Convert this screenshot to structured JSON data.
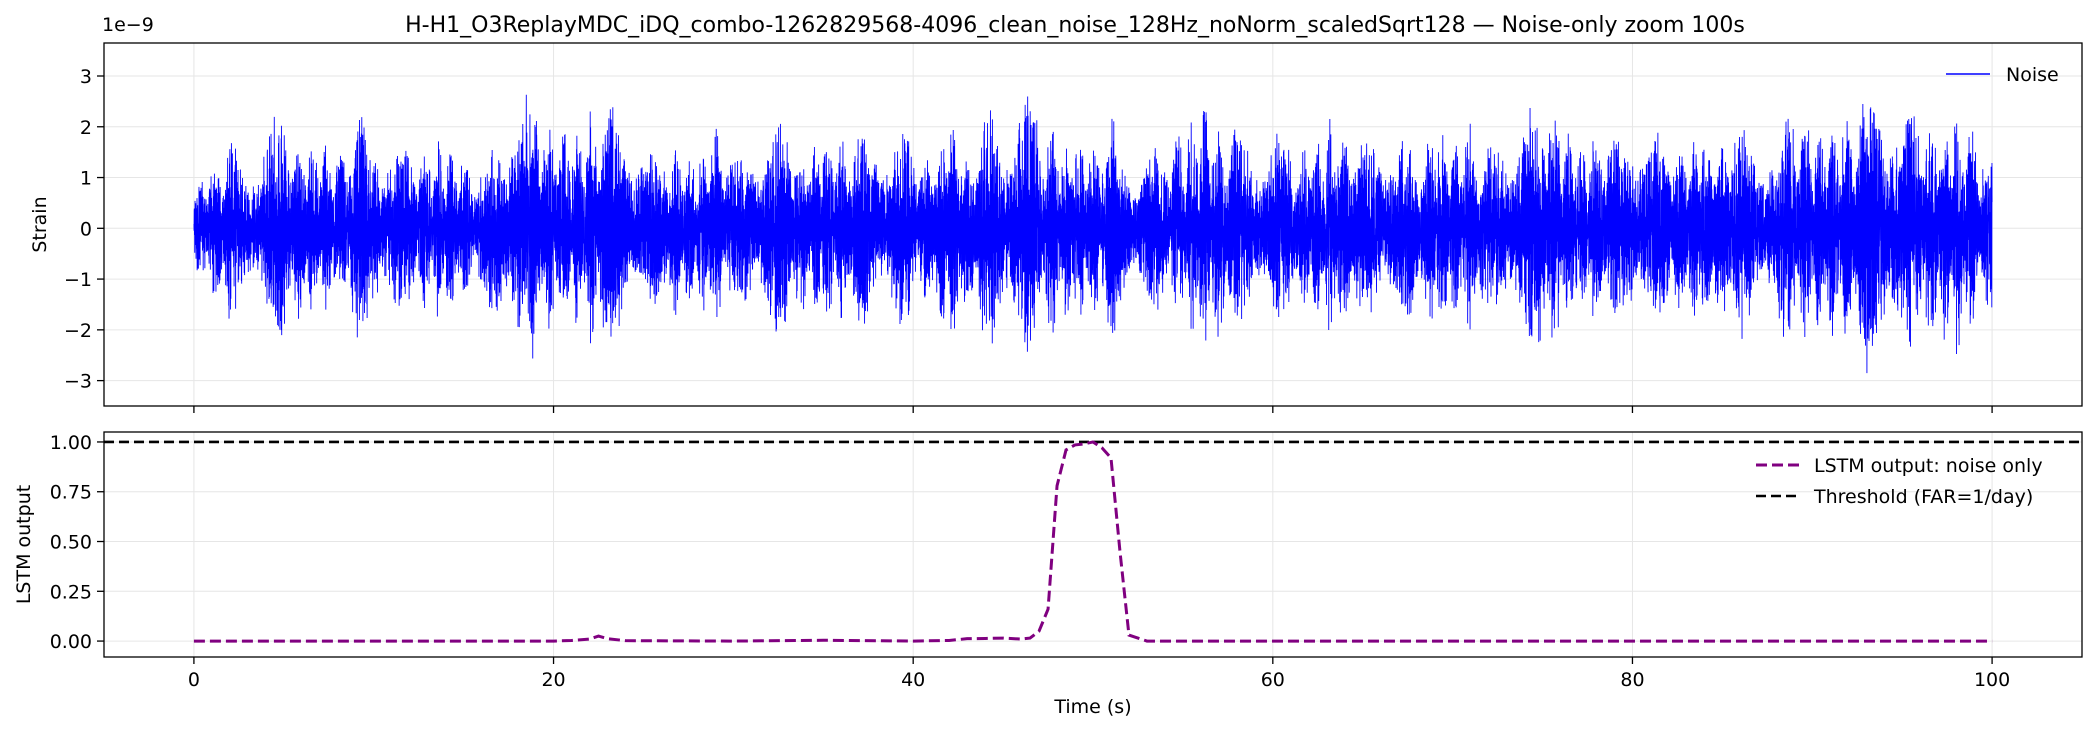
{
  "figure": {
    "title": "H-H1_O3ReplayMDC_iDQ_combo-1262829568-4096_clean_noise_128Hz_noNorm_scaledSqrt128 — Noise-only zoom 100s",
    "xlabel": "Time (s)"
  },
  "chart_data": [
    {
      "type": "line",
      "panel": "top",
      "ylabel": "Strain",
      "offset_text": "1e−9",
      "scale": 1e-09,
      "xlim": [
        -5,
        105
      ],
      "ylim": [
        -3.5,
        3.65
      ],
      "xticks": [
        0,
        20,
        40,
        60,
        80,
        100
      ],
      "yticks": [
        -3,
        -2,
        -1,
        0,
        1,
        2,
        3
      ],
      "ytick_labels": [
        "−3",
        "−2",
        "−1",
        "0",
        "1",
        "2",
        "3"
      ],
      "grid": true,
      "legend_position": "top-right",
      "series": [
        {
          "name": "Noise",
          "color": "#0000ff",
          "style": "solid",
          "description_samples": 12800,
          "envelope": {
            "x": [
              0,
              1,
              2,
              3,
              4,
              5,
              6,
              7,
              8,
              9,
              10,
              11,
              12,
              13,
              14,
              15,
              16,
              17,
              18,
              19,
              20,
              21,
              22,
              23,
              24,
              25,
              26,
              27,
              28,
              29,
              30,
              31,
              32,
              33,
              34,
              35,
              36,
              37,
              38,
              39,
              40,
              41,
              42,
              43,
              44,
              45,
              46,
              47,
              48,
              49,
              50,
              51,
              52,
              53,
              54,
              55,
              56,
              57,
              58,
              59,
              60,
              61,
              62,
              63,
              64,
              65,
              66,
              67,
              68,
              69,
              70,
              71,
              72,
              73,
              74,
              75,
              76,
              77,
              78,
              79,
              80,
              81,
              82,
              83,
              84,
              85,
              86,
              87,
              88,
              89,
              90,
              91,
              92,
              93,
              94,
              95,
              96,
              97,
              98,
              99,
              100
            ],
            "amp": [
              1.1,
              1.3,
              2.1,
              1.3,
              2.4,
              2.6,
              1.7,
              2.0,
              1.5,
              2.2,
              2.3,
              1.9,
              1.6,
              1.7,
              1.9,
              1.6,
              1.1,
              2.5,
              3.0,
              2.7,
              2.1,
              2.0,
              2.3,
              2.8,
              2.0,
              1.9,
              1.6,
              1.8,
              1.5,
              2.2,
              1.4,
              1.9,
              2.4,
              2.0,
              1.7,
              2.0,
              1.8,
              2.1,
              2.2,
              2.4,
              1.6,
              1.6,
              2.3,
              1.7,
              2.6,
              2.2,
              3.1,
              2.3,
              2.1,
              2.0,
              1.8,
              2.3,
              1.3,
              1.9,
              1.5,
              2.0,
              2.6,
              2.4,
              2.1,
              1.8,
              2.2,
              1.9,
              1.6,
              2.4,
              2.0,
              1.7,
              2.1,
              2.0,
              1.7,
              2.2,
              1.9,
              2.1,
              1.6,
              2.0,
              2.5,
              2.6,
              2.3,
              1.9,
              2.0,
              2.1,
              2.3,
              2.1,
              1.9,
              1.6,
              2.2,
              2.0,
              2.3,
              2.0,
              1.9,
              2.6,
              2.1,
              2.4,
              2.2,
              2.9,
              3.2,
              2.2,
              2.6,
              2.1,
              2.6,
              1.9,
              1.7
            ]
          }
        }
      ]
    },
    {
      "type": "line",
      "panel": "bottom",
      "ylabel": "LSTM output",
      "xlabel": "Time (s)",
      "xlim": [
        -5,
        105
      ],
      "ylim": [
        -0.08,
        1.05
      ],
      "xticks": [
        0,
        20,
        40,
        60,
        80,
        100
      ],
      "yticks": [
        0.0,
        0.25,
        0.5,
        0.75,
        1.0
      ],
      "ytick_labels": [
        "0.00",
        "0.25",
        "0.50",
        "0.75",
        "1.00"
      ],
      "grid": true,
      "legend_position": "top-right",
      "series": [
        {
          "name": "LSTM output: noise only",
          "color": "#800080",
          "style": "dashed",
          "x": [
            0,
            5,
            10,
            15,
            20,
            21,
            22,
            22.5,
            23,
            24,
            30,
            35,
            40,
            42,
            43,
            44,
            45,
            46,
            46.5,
            47,
            47.5,
            48,
            48.5,
            49,
            49.5,
            50,
            50.5,
            51,
            51.5,
            52,
            53,
            60,
            70,
            80,
            90,
            100
          ],
          "y": [
            0.0,
            0.0,
            0.0,
            0.0,
            0.0,
            0.003,
            0.01,
            0.025,
            0.012,
            0.002,
            0.0,
            0.004,
            0.0,
            0.003,
            0.012,
            0.013,
            0.015,
            0.01,
            0.015,
            0.05,
            0.16,
            0.78,
            0.96,
            0.985,
            0.99,
            1.0,
            0.97,
            0.92,
            0.45,
            0.03,
            0.0,
            0.0,
            0.0,
            0.0,
            0.0,
            0.0
          ]
        },
        {
          "name": "Threshold (FAR=1/day)",
          "color": "#000000",
          "style": "dashed",
          "hline": 1.0
        }
      ]
    }
  ]
}
